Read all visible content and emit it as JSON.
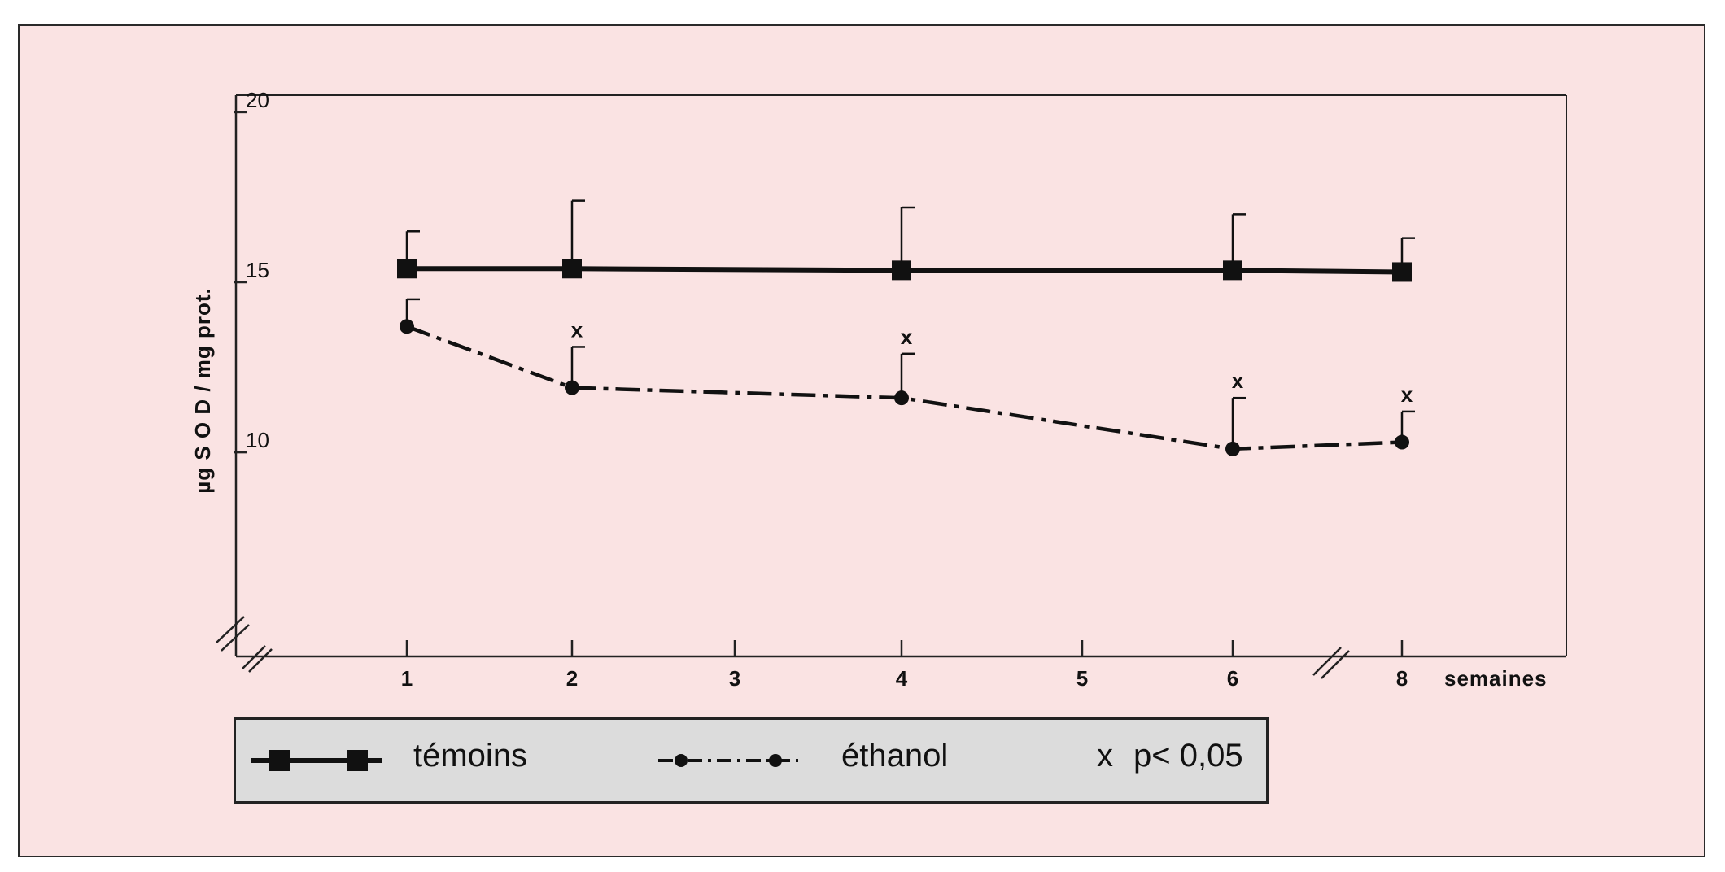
{
  "chart_data": {
    "type": "line",
    "title": "",
    "xlabel": "semaines",
    "ylabel": "µg S O D / mg prot.",
    "x": [
      1,
      2,
      4,
      6,
      8
    ],
    "x_ticks": [
      "1",
      "2",
      "3",
      "4",
      "5",
      "6",
      "8"
    ],
    "y_ticks": [
      "10",
      "15",
      "20"
    ],
    "ylim": [
      4,
      20.5
    ],
    "axis_breaks": [
      "y-axis",
      "x-axis between 6 and 8"
    ],
    "grid": false,
    "legend_placement": "bottom",
    "series": [
      {
        "name": "témoins",
        "marker": "square",
        "line_style": "solid",
        "values": [
          15.4,
          15.4,
          15.35,
          15.35,
          15.3
        ],
        "error_upper": [
          16.5,
          17.4,
          17.2,
          17.0,
          16.3
        ]
      },
      {
        "name": "éthanol",
        "marker": "circle",
        "line_style": "dash-dot",
        "values": [
          13.7,
          11.9,
          11.6,
          10.1,
          10.3
        ],
        "error_upper": [
          14.5,
          13.1,
          12.9,
          11.6,
          11.2
        ],
        "significance_marks": [
          "",
          "x",
          "x",
          "x",
          "x"
        ]
      }
    ],
    "annotation": {
      "marker": "x",
      "label": "p< 0,05"
    }
  },
  "legend": {
    "series1_label": "témoins",
    "series2_label": "éthanol",
    "sig_marker": "x",
    "sig_label": "p< 0,05"
  },
  "colors": {
    "background": "#fae3e3",
    "ink": "#111111",
    "legend_bg": "#dcdcdc"
  }
}
